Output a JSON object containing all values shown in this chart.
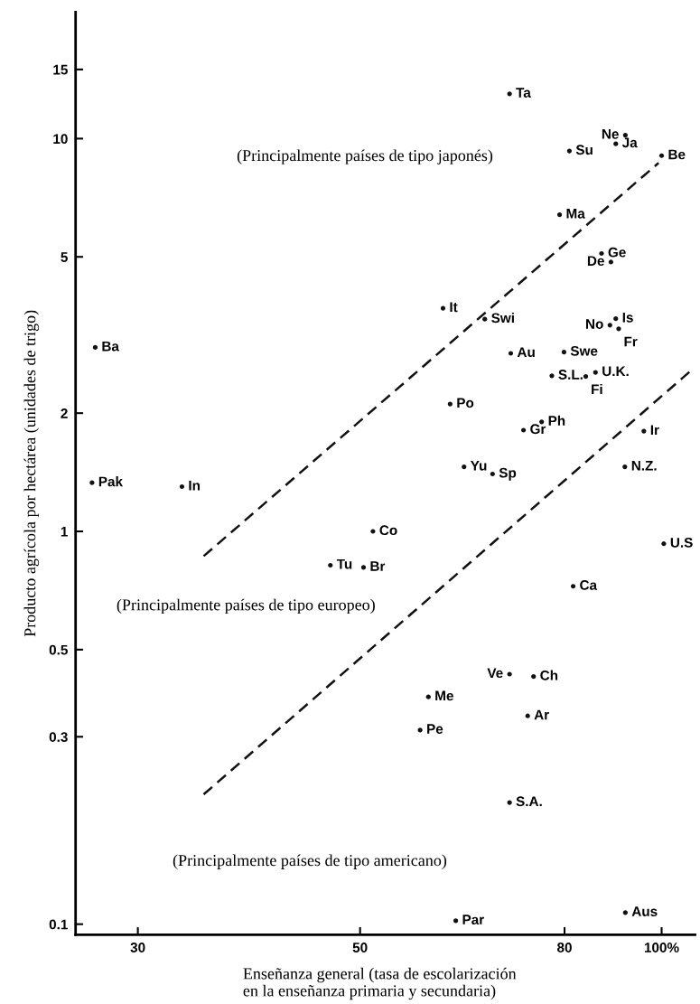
{
  "chart_data": {
    "type": "scatter",
    "xlabel": "Enseñanza general (tasa de escolarización\nen la enseñanza primaria y secundaria)",
    "ylabel": "Producto agrícola por hectárea (unidades de trigo)",
    "log": "xy",
    "grid": false,
    "legend": false,
    "marker": "circle",
    "xlim": [
      26,
      108
    ],
    "xticks": [
      30,
      50,
      80,
      {
        "value": 100,
        "label": "100%"
      }
    ],
    "ylim": [
      0.094,
      21
    ],
    "yticks": [
      0.1,
      0.3,
      0.5,
      1,
      2,
      5,
      10,
      15
    ],
    "series": [
      {
        "color": "#111111",
        "x": [
          70.5,
          80.9,
          90.0,
          92.0,
          100,
          79.1,
          87.1,
          89.0,
          60.5,
          66.6,
          27.2,
          88.8,
          90.0,
          90.6,
          70.7,
          79.9,
          77.7,
          84.0,
          85.9,
          61.5,
          27.0,
          33.2,
          72.8,
          75.9,
          96.0,
          63.5,
          67.8,
          91.9,
          51.5,
          100.5,
          46.7,
          50.4,
          81.6,
          70.5,
          74.5,
          58.5,
          73.5,
          57.4,
          70.5,
          62.3,
          92.0
        ],
        "values": [
          13.0,
          9.3,
          9.7,
          10.2,
          9.05,
          6.4,
          5.1,
          4.85,
          3.7,
          3.47,
          2.94,
          3.35,
          3.48,
          3.28,
          2.84,
          2.86,
          2.49,
          2.48,
          2.54,
          2.11,
          1.33,
          1.3,
          1.81,
          1.9,
          1.8,
          1.46,
          1.4,
          1.46,
          1.0,
          0.93,
          0.82,
          0.81,
          0.725,
          0.433,
          0.427,
          0.379,
          0.339,
          0.312,
          0.204,
          0.102,
          0.107
        ]
      },
      {
        "type": "line",
        "color": "#111111",
        "line_style": "dashed",
        "marker": "none",
        "x": [
          34.9,
          99.3
        ],
        "values": [
          0.865,
          8.67
        ]
      },
      {
        "type": "line",
        "color": "#111111",
        "line_style": "dashed",
        "marker": "none",
        "x": [
          34.9,
          107.6
        ],
        "values": [
          0.214,
          2.6
        ]
      }
    ],
    "annotations": [
      "(Principalmente países de tipo japonés)",
      "(Principalmente países de tipo europeo)",
      "(Principalmente países de tipo americano)",
      {
        "text": "Ta",
        "x": 70.5,
        "y": 13.0
      },
      {
        "text": "Su",
        "x": 80.9,
        "y": 9.3
      },
      {
        "text": "Ja",
        "x": 90.0,
        "y": 9.7
      },
      {
        "text": "Ne",
        "x": 92.0,
        "y": 10.2
      },
      {
        "text": "Be",
        "x": 100,
        "y": 9.05
      },
      {
        "text": "Ma",
        "x": 79.1,
        "y": 6.4
      },
      {
        "text": "Ge",
        "x": 87.1,
        "y": 5.1
      },
      {
        "text": "De",
        "x": 89.0,
        "y": 4.85
      },
      {
        "text": "It",
        "x": 60.5,
        "y": 3.7
      },
      {
        "text": "Swi",
        "x": 66.6,
        "y": 3.47
      },
      {
        "text": "Ba",
        "x": 27.2,
        "y": 2.94
      },
      {
        "text": "No",
        "x": 88.8,
        "y": 3.35
      },
      {
        "text": "Is",
        "x": 90.0,
        "y": 3.48
      },
      {
        "text": "Fr",
        "x": 90.6,
        "y": 3.28
      },
      {
        "text": "Au",
        "x": 70.7,
        "y": 2.84
      },
      {
        "text": "Swe",
        "x": 79.9,
        "y": 2.86
      },
      {
        "text": "S.L.",
        "x": 77.7,
        "y": 2.49
      },
      {
        "text": "Fi",
        "x": 84.0,
        "y": 2.48
      },
      {
        "text": "U.K.",
        "x": 85.9,
        "y": 2.54
      },
      {
        "text": "Po",
        "x": 61.5,
        "y": 2.11
      },
      {
        "text": "Pak",
        "x": 27.0,
        "y": 1.33
      },
      {
        "text": "In",
        "x": 33.2,
        "y": 1.3
      },
      {
        "text": "Gr",
        "x": 72.8,
        "y": 1.81
      },
      {
        "text": "Ph",
        "x": 75.9,
        "y": 1.9
      },
      {
        "text": "Ir",
        "x": 96.0,
        "y": 1.8
      },
      {
        "text": "Yu",
        "x": 63.5,
        "y": 1.46
      },
      {
        "text": "Sp",
        "x": 67.8,
        "y": 1.4
      },
      {
        "text": "N.Z.",
        "x": 91.9,
        "y": 1.46
      },
      {
        "text": "Co",
        "x": 51.5,
        "y": 1.0
      },
      {
        "text": "U.S",
        "x": 100.5,
        "y": 0.93
      },
      {
        "text": "Tu",
        "x": 46.7,
        "y": 0.82
      },
      {
        "text": "Br",
        "x": 50.4,
        "y": 0.81
      },
      {
        "text": "Ca",
        "x": 81.6,
        "y": 0.725
      },
      {
        "text": "Ve",
        "x": 70.5,
        "y": 0.433
      },
      {
        "text": "Ch",
        "x": 74.5,
        "y": 0.427
      },
      {
        "text": "Me",
        "x": 58.5,
        "y": 0.379
      },
      {
        "text": "Ar",
        "x": 73.5,
        "y": 0.339
      },
      {
        "text": "Pe",
        "x": 57.4,
        "y": 0.312
      },
      {
        "text": "S.A.",
        "x": 70.5,
        "y": 0.204
      },
      {
        "text": "Par",
        "x": 62.3,
        "y": 0.102
      },
      {
        "text": "Aus",
        "x": 92.0,
        "y": 0.107
      }
    ]
  }
}
